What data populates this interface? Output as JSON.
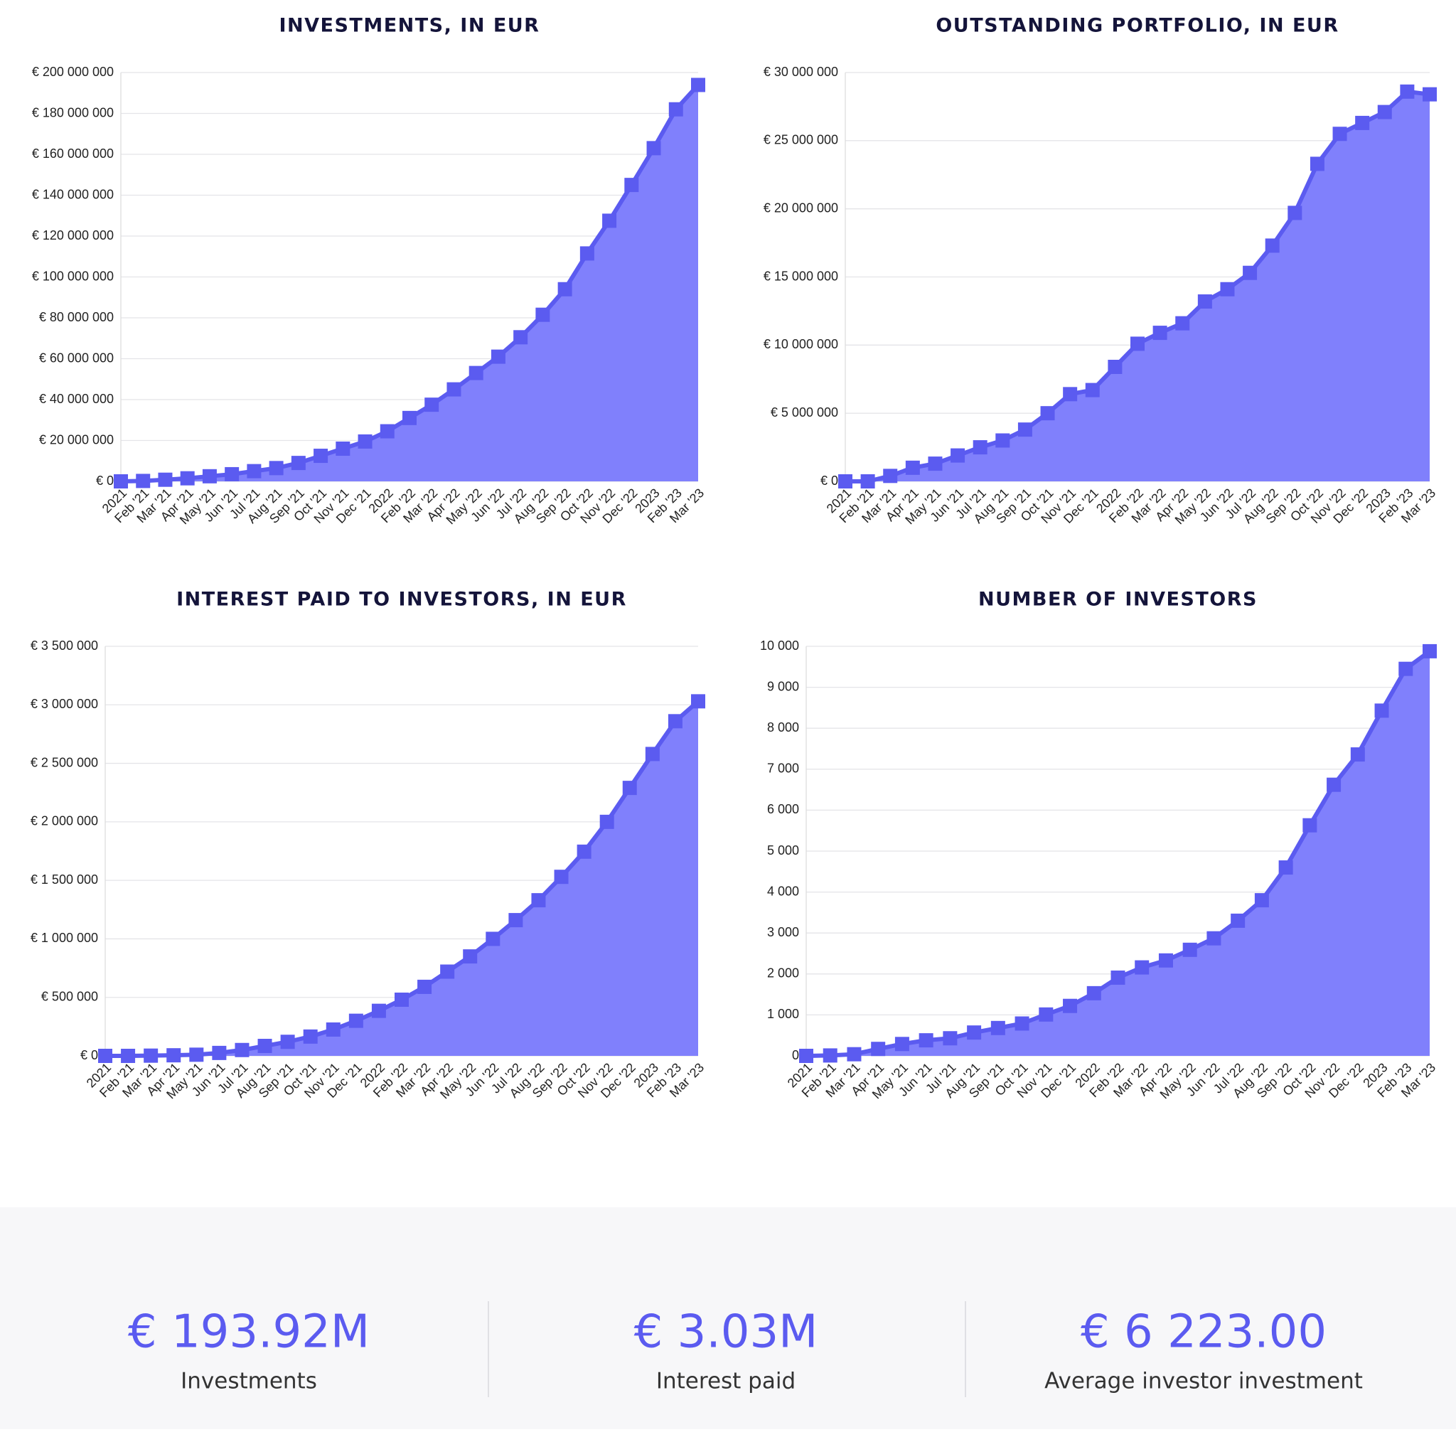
{
  "chart_data": [
    {
      "type": "area-line",
      "title": "INVESTMENTS, IN EUR",
      "color": "#5b5bf0",
      "fill": "#8080fc",
      "grid": true,
      "categories": [
        "2021",
        "Feb '21",
        "Mar '21",
        "Apr '21",
        "May '21",
        "Jun '21",
        "Jul '21",
        "Aug '21",
        "Sep '21",
        "Oct '21",
        "Nov '21",
        "Dec '21",
        "2022",
        "Feb '22",
        "Mar '22",
        "Apr '22",
        "May '22",
        "Jun '22",
        "Jul '22",
        "Aug '22",
        "Sep '22",
        "Oct '22",
        "Nov '22",
        "Dec '22",
        "2023",
        "Feb '23",
        "Mar '23"
      ],
      "values": [
        0,
        200000,
        800000,
        1500000,
        2500000,
        3500000,
        5000000,
        6500000,
        9000000,
        12500000,
        16000000,
        19500000,
        24500000,
        31000000,
        37500000,
        45000000,
        53000000,
        61000000,
        70500000,
        81500000,
        94000000,
        111500000,
        127500000,
        145000000,
        163000000,
        182000000,
        193920000
      ],
      "ylim": [
        0,
        200000000
      ],
      "yticks": [
        {
          "value": 0,
          "label": "€ 0"
        },
        {
          "value": 20000000,
          "label": "€ 20 000 000"
        },
        {
          "value": 40000000,
          "label": "€ 40 000 000"
        },
        {
          "value": 60000000,
          "label": "€ 60 000 000"
        },
        {
          "value": 80000000,
          "label": "€ 80 000 000"
        },
        {
          "value": 100000000,
          "label": "€ 100 000 000"
        },
        {
          "value": 120000000,
          "label": "€ 120 000 000"
        },
        {
          "value": 140000000,
          "label": "€ 140 000 000"
        },
        {
          "value": 160000000,
          "label": "€ 160 000 000"
        },
        {
          "value": 180000000,
          "label": "€ 180 000 000"
        },
        {
          "value": 200000000,
          "label": "€ 200 000 000"
        }
      ]
    },
    {
      "type": "area-line",
      "title": "OUTSTANDING PORTFOLIO, IN EUR",
      "color": "#5b5bf0",
      "fill": "#8080fc",
      "grid": true,
      "categories": [
        "2021",
        "Feb '21",
        "Mar '21",
        "Apr '21",
        "May '21",
        "Jun '21",
        "Jul '21",
        "Aug '21",
        "Sep '21",
        "Oct '21",
        "Nov '21",
        "Dec '21",
        "2022",
        "Feb '22",
        "Mar '22",
        "Apr '22",
        "May '22",
        "Jun '22",
        "Jul '22",
        "Aug '22",
        "Sep '22",
        "Oct '22",
        "Nov '22",
        "Dec '22",
        "2023",
        "Feb '23",
        "Mar '23"
      ],
      "values": [
        0,
        0,
        400000,
        1000000,
        1300000,
        1900000,
        2500000,
        3000000,
        3800000,
        5000000,
        6400000,
        6700000,
        8400000,
        10100000,
        10900000,
        11600000,
        13200000,
        14100000,
        15300000,
        17300000,
        19700000,
        23300000,
        25500000,
        26300000,
        27100000,
        28600000,
        28400000
      ],
      "ylim": [
        0,
        30000000
      ],
      "yticks": [
        {
          "value": 0,
          "label": "€ 0"
        },
        {
          "value": 5000000,
          "label": "€ 5 000 000"
        },
        {
          "value": 10000000,
          "label": "€ 10 000 000"
        },
        {
          "value": 15000000,
          "label": "€ 15 000 000"
        },
        {
          "value": 20000000,
          "label": "€ 20 000 000"
        },
        {
          "value": 25000000,
          "label": "€ 25 000 000"
        },
        {
          "value": 30000000,
          "label": "€ 30 000 000"
        }
      ]
    },
    {
      "type": "area-line",
      "title": "INTEREST PAID TO INVESTORS, IN EUR",
      "color": "#5b5bf0",
      "fill": "#8080fc",
      "grid": true,
      "categories": [
        "2021",
        "Feb '21",
        "Mar '21",
        "Apr '21",
        "May '21",
        "Jun '21",
        "Jul '21",
        "Aug '21",
        "Sep '21",
        "Oct '21",
        "Nov '21",
        "Dec '21",
        "2022",
        "Feb '22",
        "Mar '22",
        "Apr '22",
        "May '22",
        "Jun '22",
        "Jul '22",
        "Aug '22",
        "Sep '22",
        "Oct '22",
        "Nov '22",
        "Dec '22",
        "2023",
        "Feb '23",
        "Mar '23"
      ],
      "values": [
        0,
        0,
        2000,
        5000,
        10000,
        25000,
        50000,
        85000,
        120000,
        165000,
        225000,
        300000,
        385000,
        480000,
        590000,
        720000,
        850000,
        1000000,
        1160000,
        1330000,
        1530000,
        1745000,
        2000000,
        2290000,
        2580000,
        2860000,
        3030000
      ],
      "ylim": [
        0,
        3500000
      ],
      "yticks": [
        {
          "value": 0,
          "label": "€ 0"
        },
        {
          "value": 500000,
          "label": "€ 500 000"
        },
        {
          "value": 1000000,
          "label": "€ 1 000 000"
        },
        {
          "value": 1500000,
          "label": "€ 1 500 000"
        },
        {
          "value": 2000000,
          "label": "€ 2 000 000"
        },
        {
          "value": 2500000,
          "label": "€ 2 500 000"
        },
        {
          "value": 3000000,
          "label": "€ 3 000 000"
        },
        {
          "value": 3500000,
          "label": "€ 3 500 000"
        }
      ]
    },
    {
      "type": "area-line",
      "title": "NUMBER OF INVESTORS",
      "color": "#5b5bf0",
      "fill": "#8080fc",
      "grid": true,
      "categories": [
        "2021",
        "Feb '21",
        "Mar '21",
        "Apr '21",
        "May '21",
        "Jun '21",
        "Jul '21",
        "Aug '21",
        "Sep '21",
        "Oct '21",
        "Nov '21",
        "Dec '21",
        "2022",
        "Feb '22",
        "Mar '22",
        "Apr '22",
        "May '22",
        "Jun '22",
        "Jul '22",
        "Aug '22",
        "Sep '22",
        "Oct '22",
        "Nov '22",
        "Dec '22",
        "2023",
        "Feb '23",
        "Mar '23"
      ],
      "values": [
        0,
        10,
        40,
        170,
        290,
        380,
        430,
        570,
        680,
        790,
        1010,
        1220,
        1530,
        1910,
        2160,
        2330,
        2590,
        2870,
        3300,
        3800,
        4600,
        5630,
        6620,
        7360,
        8430,
        9450,
        9880
      ],
      "ylim": [
        0,
        10000
      ],
      "yticks": [
        0,
        {
          "value": 1000,
          "label": "1 000"
        },
        {
          "value": 2000,
          "label": "2 000"
        },
        {
          "value": 3000,
          "label": "3 000"
        },
        {
          "value": 4000,
          "label": "4 000"
        },
        {
          "value": 5000,
          "label": "5 000"
        },
        {
          "value": 6000,
          "label": "6 000"
        },
        {
          "value": 7000,
          "label": "7 000"
        },
        {
          "value": 8000,
          "label": "8 000"
        },
        {
          "value": 9000,
          "label": "9 000"
        },
        {
          "value": 10000,
          "label": "10 000"
        }
      ]
    }
  ],
  "stats": [
    {
      "value": "€ 193.92M",
      "label": "Investments"
    },
    {
      "value": "€ 3.03M",
      "label": "Interest paid"
    },
    {
      "value": "€ 6 223.00",
      "label": "Average investor investment"
    }
  ]
}
